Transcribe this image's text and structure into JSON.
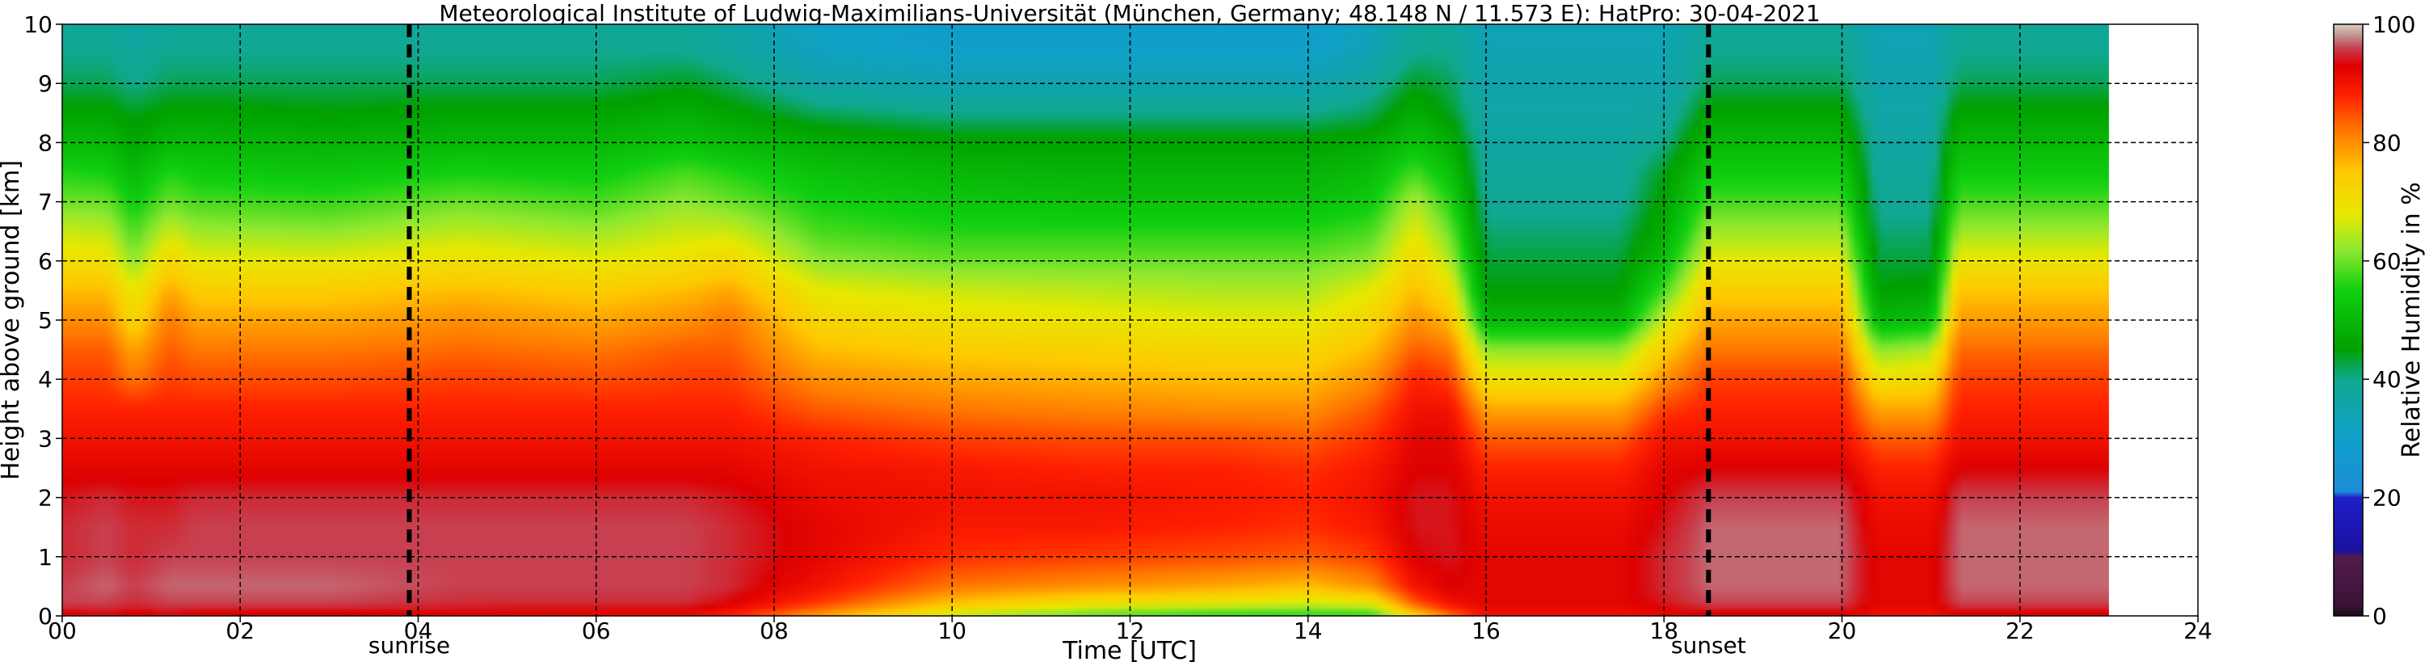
{
  "chart_data": {
    "type": "heatmap",
    "title": "Meteorological Institute of Ludwig-Maximilians-Universität (München, Germany; 48.148 N / 11.573 E):    HatPro: 30-04-2021",
    "xlabel": "Time [UTC]",
    "ylabel": "Height above ground [km]",
    "xlim": [
      0,
      24
    ],
    "ylim": [
      0,
      10
    ],
    "xticks": [
      0,
      2,
      4,
      6,
      8,
      10,
      12,
      14,
      16,
      18,
      20,
      22,
      24
    ],
    "xtick_labels": [
      "00",
      "02",
      "04",
      "06",
      "08",
      "10",
      "12",
      "14",
      "16",
      "18",
      "20",
      "22",
      "24"
    ],
    "yticks": [
      0,
      1,
      2,
      3,
      4,
      5,
      6,
      7,
      8,
      9,
      10
    ],
    "ytick_labels": [
      "0",
      "1",
      "2",
      "3",
      "4",
      "5",
      "6",
      "7",
      "8",
      "9",
      "10"
    ],
    "data_end_hour": 23,
    "grid": true,
    "vlines": [
      {
        "x": 3.9,
        "label": "sunrise"
      },
      {
        "x": 18.5,
        "label": "sunset"
      }
    ],
    "colorbar": {
      "label": "Relative Humidity in %",
      "range": [
        0,
        100
      ],
      "ticks": [
        0,
        20,
        40,
        60,
        80,
        100
      ],
      "tick_labels": [
        "0",
        "20",
        "40",
        "60",
        "80",
        "100"
      ],
      "stops": [
        {
          "value": 0,
          "color": "#1a0d1a"
        },
        {
          "value": 2,
          "color": "#3b1338"
        },
        {
          "value": 10,
          "color": "#521b4c"
        },
        {
          "value": 11,
          "color": "#1a0fa0"
        },
        {
          "value": 20,
          "color": "#2020c8"
        },
        {
          "value": 21,
          "color": "#1e8cd8"
        },
        {
          "value": 30,
          "color": "#0fa0c8"
        },
        {
          "value": 40,
          "color": "#10a890"
        },
        {
          "value": 45,
          "color": "#00a000"
        },
        {
          "value": 55,
          "color": "#10d010"
        },
        {
          "value": 62,
          "color": "#90e830"
        },
        {
          "value": 68,
          "color": "#e8e800"
        },
        {
          "value": 75,
          "color": "#ffc800"
        },
        {
          "value": 82,
          "color": "#ff7800"
        },
        {
          "value": 88,
          "color": "#ff2000"
        },
        {
          "value": 93,
          "color": "#dd0000"
        },
        {
          "value": 96,
          "color": "#c84050"
        },
        {
          "value": 98,
          "color": "#c09090"
        },
        {
          "value": 100,
          "color": "#d8d0b8"
        }
      ]
    },
    "profile_heights_km": [
      0,
      0.2,
      0.5,
      1,
      1.5,
      2,
      2.5,
      3,
      3.5,
      4,
      4.5,
      5,
      5.5,
      6,
      6.5,
      7,
      7.5,
      8,
      8.5,
      9,
      9.5,
      10
    ],
    "profiles": [
      {
        "time": 0.0,
        "rh": [
          92,
          96,
          96,
          95,
          95,
          94,
          92,
          90,
          88,
          86,
          84,
          80,
          76,
          70,
          66,
          60,
          56,
          50,
          46,
          42,
          40,
          38
        ]
      },
      {
        "time": 0.5,
        "rh": [
          93,
          96,
          97,
          96,
          96,
          95,
          92,
          90,
          88,
          86,
          84,
          80,
          76,
          70,
          65,
          60,
          55,
          50,
          46,
          42,
          40,
          38
        ]
      },
      {
        "time": 0.8,
        "rh": [
          92,
          95,
          96,
          95,
          95,
          94,
          92,
          90,
          88,
          82,
          78,
          72,
          68,
          62,
          58,
          54,
          50,
          46,
          44,
          40,
          38,
          36
        ]
      },
      {
        "time": 1.2,
        "rh": [
          93,
          96,
          97,
          96,
          95,
          94,
          92,
          90,
          88,
          86,
          84,
          82,
          78,
          72,
          66,
          60,
          56,
          50,
          46,
          42,
          40,
          38
        ]
      },
      {
        "time": 1.5,
        "rh": [
          92,
          96,
          97,
          96,
          96,
          95,
          92,
          90,
          88,
          85,
          82,
          78,
          74,
          68,
          63,
          58,
          54,
          50,
          46,
          42,
          40,
          38
        ]
      },
      {
        "time": 3.0,
        "rh": [
          92,
          96,
          97,
          96,
          96,
          95,
          92,
          90,
          88,
          85,
          82,
          78,
          74,
          68,
          62,
          57,
          53,
          49,
          45,
          42,
          40,
          38
        ]
      },
      {
        "time": 4.5,
        "rh": [
          92,
          95,
          96,
          96,
          96,
          95,
          92,
          90,
          88,
          86,
          83,
          80,
          76,
          70,
          65,
          60,
          55,
          50,
          46,
          42,
          40,
          38
        ]
      },
      {
        "time": 6.0,
        "rh": [
          91,
          95,
          96,
          96,
          96,
          95,
          92,
          90,
          88,
          85,
          82,
          78,
          74,
          68,
          63,
          58,
          54,
          50,
          46,
          42,
          40,
          38
        ]
      },
      {
        "time": 7.0,
        "rh": [
          91,
          95,
          96,
          96,
          96,
          95,
          92,
          90,
          88,
          86,
          84,
          80,
          76,
          70,
          66,
          62,
          58,
          52,
          48,
          44,
          40,
          38
        ]
      },
      {
        "time": 7.5,
        "rh": [
          88,
          93,
          95,
          95,
          95,
          94,
          92,
          90,
          88,
          86,
          84,
          82,
          78,
          72,
          66,
          60,
          56,
          50,
          46,
          42,
          38,
          36
        ]
      },
      {
        "time": 8.5,
        "rh": [
          78,
          86,
          90,
          92,
          92,
          91,
          90,
          88,
          84,
          80,
          76,
          72,
          68,
          62,
          58,
          55,
          52,
          48,
          42,
          36,
          32,
          30
        ]
      },
      {
        "time": 10.0,
        "rh": [
          65,
          75,
          82,
          87,
          89,
          90,
          89,
          86,
          82,
          78,
          74,
          70,
          66,
          60,
          56,
          53,
          50,
          46,
          40,
          34,
          30,
          28
        ]
      },
      {
        "time": 11.5,
        "rh": [
          58,
          70,
          80,
          86,
          89,
          90,
          88,
          85,
          81,
          77,
          73,
          69,
          65,
          60,
          56,
          52,
          49,
          46,
          40,
          34,
          30,
          28
        ]
      },
      {
        "time": 13.0,
        "rh": [
          55,
          68,
          78,
          85,
          88,
          89,
          88,
          85,
          80,
          76,
          72,
          68,
          64,
          60,
          56,
          52,
          49,
          46,
          40,
          34,
          30,
          28
        ]
      },
      {
        "time": 14.0,
        "rh": [
          55,
          66,
          76,
          84,
          87,
          88,
          87,
          84,
          80,
          76,
          72,
          68,
          64,
          60,
          56,
          52,
          49,
          46,
          40,
          34,
          30,
          28
        ]
      },
      {
        "time": 14.7,
        "rh": [
          55,
          68,
          80,
          86,
          89,
          90,
          89,
          87,
          84,
          80,
          76,
          72,
          68,
          62,
          58,
          54,
          51,
          47,
          42,
          38,
          34,
          32
        ]
      },
      {
        "time": 15.2,
        "rh": [
          72,
          84,
          90,
          93,
          94,
          94,
          93,
          92,
          90,
          88,
          84,
          80,
          76,
          72,
          68,
          64,
          58,
          52,
          48,
          44,
          40,
          38
        ]
      },
      {
        "time": 15.6,
        "rh": [
          82,
          90,
          93,
          94,
          94,
          94,
          93,
          92,
          90,
          86,
          82,
          76,
          70,
          64,
          60,
          56,
          52,
          48,
          44,
          42,
          40,
          38
        ]
      },
      {
        "time": 16.0,
        "rh": [
          90,
          92,
          92,
          92,
          91,
          90,
          88,
          84,
          78,
          70,
          62,
          50,
          45,
          43,
          41,
          39,
          38,
          37,
          36,
          35,
          34,
          33
        ]
      },
      {
        "time": 17.5,
        "rh": [
          90,
          92,
          92,
          92,
          91,
          90,
          88,
          84,
          78,
          70,
          62,
          50,
          45,
          43,
          41,
          39,
          38,
          37,
          36,
          35,
          34,
          33
        ]
      },
      {
        "time": 18.0,
        "rh": [
          91,
          94,
          95,
          95,
          94,
          93,
          92,
          90,
          86,
          80,
          74,
          66,
          58,
          52,
          48,
          46,
          44,
          40,
          37,
          35,
          34,
          33
        ]
      },
      {
        "time": 18.5,
        "rh": [
          92,
          96,
          97,
          97,
          97,
          96,
          93,
          90,
          88,
          86,
          82,
          78,
          74,
          68,
          63,
          58,
          54,
          50,
          46,
          42,
          40,
          38
        ]
      },
      {
        "time": 19.0,
        "rh": [
          92,
          96,
          97,
          97,
          97,
          96,
          93,
          90,
          88,
          86,
          82,
          78,
          74,
          68,
          63,
          58,
          54,
          50,
          46,
          42,
          40,
          38
        ]
      },
      {
        "time": 20.0,
        "rh": [
          92,
          96,
          97,
          97,
          97,
          96,
          93,
          90,
          88,
          86,
          82,
          78,
          74,
          68,
          63,
          58,
          54,
          50,
          46,
          42,
          40,
          38
        ]
      },
      {
        "time": 20.4,
        "rh": [
          90,
          92,
          92,
          92,
          91,
          90,
          88,
          84,
          78,
          70,
          62,
          50,
          45,
          43,
          41,
          39,
          38,
          37,
          36,
          35,
          34,
          33
        ]
      },
      {
        "time": 21.0,
        "rh": [
          90,
          92,
          92,
          92,
          91,
          90,
          88,
          84,
          78,
          72,
          64,
          52,
          46,
          43,
          41,
          39,
          38,
          37,
          36,
          35,
          34,
          33
        ]
      },
      {
        "time": 21.3,
        "rh": [
          92,
          96,
          97,
          97,
          97,
          96,
          93,
          90,
          88,
          86,
          83,
          79,
          75,
          69,
          63,
          58,
          54,
          50,
          46,
          42,
          40,
          38
        ]
      },
      {
        "time": 23.0,
        "rh": [
          92,
          96,
          97,
          97,
          97,
          96,
          93,
          90,
          88,
          86,
          83,
          79,
          75,
          69,
          63,
          58,
          54,
          50,
          46,
          42,
          40,
          38
        ]
      }
    ]
  }
}
